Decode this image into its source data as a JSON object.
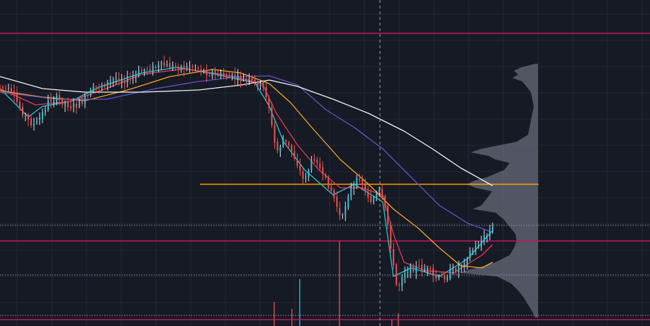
{
  "colors": {
    "background": "#161a25",
    "grid": "#232838",
    "candle_up": "#26c6da",
    "candle_down": "#ef5350",
    "wick_up": "#d8e6ea",
    "ma_fast": "#26c6da",
    "ma_red": "#e53950",
    "ma_orange": "#f5a623",
    "ma_purple": "#6a4fc8",
    "ma_white": "#f2f2f2",
    "level_line": "#c2185b",
    "key_level": "#ff9800",
    "dotted_level": "#8a8f9c",
    "crosshair": "#9aa0ad",
    "volume_profile": "#5d6170"
  },
  "chart_data": {
    "type": "candlestick",
    "title": "",
    "xlabel": "",
    "ylabel": "",
    "grid": true,
    "ylim": [
      0,
      460
    ],
    "candles_count": 175,
    "price_path": [
      [
        0,
        122
      ],
      [
        10,
        126
      ],
      [
        20,
        138
      ],
      [
        30,
        155
      ],
      [
        40,
        170
      ],
      [
        50,
        177
      ],
      [
        60,
        160
      ],
      [
        70,
        140
      ],
      [
        80,
        140
      ],
      [
        90,
        144
      ],
      [
        100,
        150
      ],
      [
        110,
        148
      ],
      [
        120,
        140
      ],
      [
        130,
        128
      ],
      [
        140,
        120
      ],
      [
        150,
        118
      ],
      [
        160,
        112
      ],
      [
        170,
        110
      ],
      [
        180,
        114
      ],
      [
        190,
        108
      ],
      [
        200,
        100
      ],
      [
        210,
        96
      ],
      [
        220,
        95
      ],
      [
        230,
        92
      ],
      [
        240,
        94
      ],
      [
        250,
        93
      ],
      [
        260,
        96
      ],
      [
        270,
        92
      ],
      [
        280,
        96
      ],
      [
        290,
        102
      ],
      [
        300,
        103
      ],
      [
        310,
        107
      ],
      [
        320,
        108
      ],
      [
        330,
        110
      ],
      [
        340,
        112
      ],
      [
        350,
        114
      ],
      [
        360,
        118
      ],
      [
        370,
        122
      ],
      [
        378,
        140
      ],
      [
        385,
        190
      ],
      [
        390,
        215
      ],
      [
        400,
        198
      ],
      [
        410,
        210
      ],
      [
        420,
        232
      ],
      [
        428,
        255
      ],
      [
        435,
        240
      ],
      [
        445,
        218
      ],
      [
        455,
        250
      ],
      [
        465,
        262
      ],
      [
        475,
        290
      ],
      [
        482,
        315
      ],
      [
        490,
        275
      ],
      [
        500,
        262
      ],
      [
        508,
        248
      ],
      [
        515,
        270
      ],
      [
        525,
        285
      ],
      [
        535,
        270
      ],
      [
        545,
        300
      ],
      [
        553,
        360
      ],
      [
        558,
        400
      ],
      [
        562,
        405
      ],
      [
        568,
        385
      ],
      [
        575,
        380
      ],
      [
        585,
        378
      ],
      [
        595,
        378
      ],
      [
        605,
        382
      ],
      [
        612,
        392
      ],
      [
        620,
        394
      ],
      [
        630,
        388
      ],
      [
        640,
        382
      ],
      [
        650,
        375
      ],
      [
        660,
        360
      ],
      [
        670,
        350
      ],
      [
        680,
        340
      ],
      [
        690,
        328
      ],
      [
        695,
        322
      ]
    ],
    "moving_averages": [
      {
        "color_key": "ma_fast",
        "values": [
          [
            0,
            125
          ],
          [
            40,
            165
          ],
          [
            60,
            150
          ],
          [
            100,
            143
          ],
          [
            140,
            123
          ],
          [
            200,
            103
          ],
          [
            250,
            95
          ],
          [
            300,
            104
          ],
          [
            360,
            117
          ],
          [
            380,
            150
          ],
          [
            400,
            200
          ],
          [
            430,
            240
          ],
          [
            470,
            275
          ],
          [
            500,
            260
          ],
          [
            540,
            285
          ],
          [
            555,
            390
          ],
          [
            580,
            378
          ],
          [
            620,
            390
          ],
          [
            660,
            365
          ],
          [
            695,
            325
          ]
        ]
      },
      {
        "color_key": "ma_red",
        "values": [
          [
            0,
            125
          ],
          [
            50,
            148
          ],
          [
            100,
            143
          ],
          [
            150,
            125
          ],
          [
            200,
            105
          ],
          [
            260,
            97
          ],
          [
            320,
            106
          ],
          [
            370,
            118
          ],
          [
            390,
            160
          ],
          [
            420,
            205
          ],
          [
            450,
            240
          ],
          [
            480,
            265
          ],
          [
            510,
            265
          ],
          [
            540,
            275
          ],
          [
            555,
            330
          ],
          [
            570,
            370
          ],
          [
            600,
            382
          ],
          [
            640,
            385
          ],
          [
            680,
            360
          ],
          [
            695,
            345
          ]
        ]
      },
      {
        "color_key": "ma_orange",
        "values": [
          [
            0,
            128
          ],
          [
            60,
            137
          ],
          [
            120,
            142
          ],
          [
            180,
            127
          ],
          [
            240,
            108
          ],
          [
            300,
            98
          ],
          [
            340,
            103
          ],
          [
            380,
            118
          ],
          [
            410,
            145
          ],
          [
            440,
            180
          ],
          [
            480,
            225
          ],
          [
            520,
            260
          ],
          [
            555,
            295
          ],
          [
            590,
            322
          ],
          [
            620,
            350
          ],
          [
            650,
            375
          ],
          [
            680,
            378
          ],
          [
            695,
            370
          ]
        ]
      },
      {
        "color_key": "ma_purple",
        "values": [
          [
            0,
            130
          ],
          [
            80,
            140
          ],
          [
            150,
            140
          ],
          [
            220,
            125
          ],
          [
            280,
            115
          ],
          [
            340,
            108
          ],
          [
            380,
            107
          ],
          [
            420,
            120
          ],
          [
            460,
            155
          ],
          [
            500,
            180
          ],
          [
            540,
            210
          ],
          [
            580,
            250
          ],
          [
            620,
            290
          ],
          [
            660,
            315
          ],
          [
            695,
            328
          ]
        ]
      },
      {
        "color_key": "ma_white",
        "values": [
          [
            0,
            108
          ],
          [
            60,
            125
          ],
          [
            120,
            130
          ],
          [
            200,
            130
          ],
          [
            280,
            127
          ],
          [
            340,
            120
          ],
          [
            380,
            113
          ],
          [
            420,
            122
          ],
          [
            470,
            140
          ],
          [
            520,
            160
          ],
          [
            570,
            185
          ],
          [
            610,
            210
          ],
          [
            650,
            237
          ],
          [
            695,
            262
          ]
        ]
      }
    ],
    "horizontal_levels": [
      {
        "color_key": "level_line",
        "y": 47,
        "x0": 0,
        "x1": 917,
        "style": "solid"
      },
      {
        "color_key": "key_level",
        "y": 260,
        "x0": 282,
        "x1": 760,
        "style": "solid"
      },
      {
        "color_key": "dotted_level",
        "y": 318,
        "x0": 0,
        "x1": 917,
        "style": "dotted"
      },
      {
        "color_key": "level_line",
        "y": 340,
        "x0": 0,
        "x1": 917,
        "style": "solid"
      },
      {
        "color_key": "dotted_level",
        "y": 388,
        "x0": 0,
        "x1": 917,
        "style": "dotted"
      },
      {
        "color_key": "dotted_level",
        "y": 445,
        "x0": 0,
        "x1": 917,
        "style": "dotted"
      },
      {
        "color_key": "level_line",
        "y": 451,
        "x0": 0,
        "x1": 917,
        "style": "solid"
      }
    ],
    "crosshair_x": 536,
    "volume_profile": {
      "right_edge": 759,
      "top": 90,
      "bottom": 448,
      "widths": [
        [
          90,
          4
        ],
        [
          95,
          24
        ],
        [
          100,
          34
        ],
        [
          105,
          28
        ],
        [
          110,
          36
        ],
        [
          115,
          22
        ],
        [
          120,
          18
        ],
        [
          125,
          14
        ],
        [
          130,
          10
        ],
        [
          140,
          8
        ],
        [
          150,
          6
        ],
        [
          160,
          8
        ],
        [
          170,
          10
        ],
        [
          180,
          12
        ],
        [
          190,
          14
        ],
        [
          200,
          30
        ],
        [
          205,
          55
        ],
        [
          210,
          80
        ],
        [
          215,
          95
        ],
        [
          220,
          70
        ],
        [
          225,
          60
        ],
        [
          230,
          40
        ],
        [
          240,
          48
        ],
        [
          250,
          72
        ],
        [
          255,
          90
        ],
        [
          260,
          100
        ],
        [
          265,
          88
        ],
        [
          270,
          65
        ],
        [
          280,
          72
        ],
        [
          290,
          80
        ],
        [
          295,
          92
        ],
        [
          300,
          60
        ],
        [
          310,
          48
        ],
        [
          320,
          40
        ],
        [
          330,
          32
        ],
        [
          340,
          30
        ],
        [
          350,
          34
        ],
        [
          360,
          40
        ],
        [
          370,
          60
        ],
        [
          375,
          75
        ],
        [
          380,
          95
        ],
        [
          385,
          110
        ],
        [
          390,
          58
        ],
        [
          400,
          38
        ],
        [
          410,
          28
        ],
        [
          420,
          20
        ],
        [
          430,
          14
        ],
        [
          440,
          8
        ],
        [
          448,
          4
        ]
      ]
    },
    "volume_bars": [
      {
        "x": 386,
        "h": 34,
        "color_key": "candle_down"
      },
      {
        "x": 411,
        "h": 24,
        "color_key": "candle_down"
      },
      {
        "x": 422,
        "h": 66,
        "color_key": "candle_up"
      },
      {
        "x": 478,
        "h": 120,
        "color_key": "candle_down"
      },
      {
        "x": 552,
        "h": 10,
        "color_key": "candle_down"
      },
      {
        "x": 561,
        "h": 18,
        "color_key": "candle_down"
      }
    ]
  }
}
